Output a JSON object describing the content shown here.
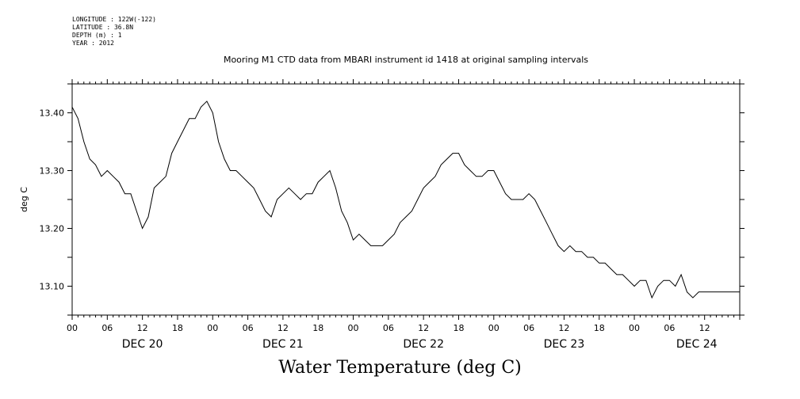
{
  "header": {
    "longitude": "LONGITUDE : 122W(-122)",
    "latitude": "LATITUDE : 36.8N",
    "depth": "DEPTH (m) : 1",
    "year": "YEAR : 2012"
  },
  "chart_data": {
    "type": "line",
    "title": "Mooring M1 CTD data from MBARI instrument id 1418 at original sampling intervals",
    "xlabel": "Water Temperature (deg C)",
    "ylabel": "deg C",
    "ylim": [
      13.05,
      13.45
    ],
    "xlim_hours": [
      0,
      114
    ],
    "y_ticks": [
      "13.10",
      "13.20",
      "13.30",
      "13.40"
    ],
    "x_tick_hours": [
      "00",
      "06",
      "12",
      "18",
      "00",
      "06",
      "12",
      "18",
      "00",
      "06",
      "12",
      "18",
      "00",
      "06",
      "12",
      "18",
      "00",
      "06",
      "12"
    ],
    "date_labels": [
      "DEC 20",
      "DEC 21",
      "DEC 22",
      "DEC 23",
      "DEC 24"
    ],
    "series": [
      {
        "x": [
          0,
          1,
          2,
          3,
          4,
          5,
          6,
          7,
          8,
          9,
          10,
          11,
          12,
          13,
          14,
          15,
          16,
          17,
          18,
          19,
          20,
          21,
          22,
          23,
          24,
          25,
          26,
          27,
          28,
          29,
          30,
          31,
          32,
          33,
          34,
          35,
          36,
          37,
          38,
          39,
          40,
          41,
          42,
          43,
          44,
          45,
          46,
          47,
          48,
          49,
          50,
          51,
          52,
          53,
          54,
          55,
          56,
          57,
          58,
          59,
          60,
          61,
          62,
          63,
          64,
          65,
          66,
          67,
          68,
          69,
          70,
          71,
          72,
          73,
          74,
          75,
          76,
          77,
          78,
          79,
          80,
          81,
          82,
          83,
          84,
          85,
          86,
          87,
          88,
          89,
          90,
          91,
          92,
          93,
          94,
          95,
          96,
          97,
          98,
          99,
          100,
          101,
          102,
          103,
          104,
          105,
          106,
          107,
          108,
          109,
          110,
          111,
          112,
          113,
          114
        ],
        "values": [
          13.41,
          13.39,
          13.35,
          13.32,
          13.31,
          13.29,
          13.3,
          13.29,
          13.28,
          13.26,
          13.26,
          13.23,
          13.2,
          13.22,
          13.27,
          13.28,
          13.29,
          13.33,
          13.35,
          13.37,
          13.39,
          13.39,
          13.41,
          13.42,
          13.4,
          13.35,
          13.32,
          13.3,
          13.3,
          13.29,
          13.28,
          13.27,
          13.25,
          13.23,
          13.22,
          13.25,
          13.26,
          13.27,
          13.26,
          13.25,
          13.26,
          13.26,
          13.28,
          13.29,
          13.3,
          13.27,
          13.23,
          13.21,
          13.18,
          13.19,
          13.18,
          13.17,
          13.17,
          13.17,
          13.18,
          13.19,
          13.21,
          13.22,
          13.23,
          13.25,
          13.27,
          13.28,
          13.29,
          13.31,
          13.32,
          13.33,
          13.33,
          13.31,
          13.3,
          13.29,
          13.29,
          13.3,
          13.3,
          13.28,
          13.26,
          13.25,
          13.25,
          13.25,
          13.26,
          13.25,
          13.23,
          13.21,
          13.19,
          13.17,
          13.16,
          13.17,
          13.16,
          13.16,
          13.15,
          13.15,
          13.14,
          13.14,
          13.13,
          13.12,
          13.12,
          13.11,
          13.1,
          13.11,
          13.11,
          13.08,
          13.1,
          13.11,
          13.11,
          13.1,
          13.12,
          13.09,
          13.08,
          13.09,
          13.09,
          13.09,
          13.09,
          13.09,
          13.09,
          13.09,
          13.09
        ]
      }
    ],
    "grid": false,
    "legend": "none"
  }
}
